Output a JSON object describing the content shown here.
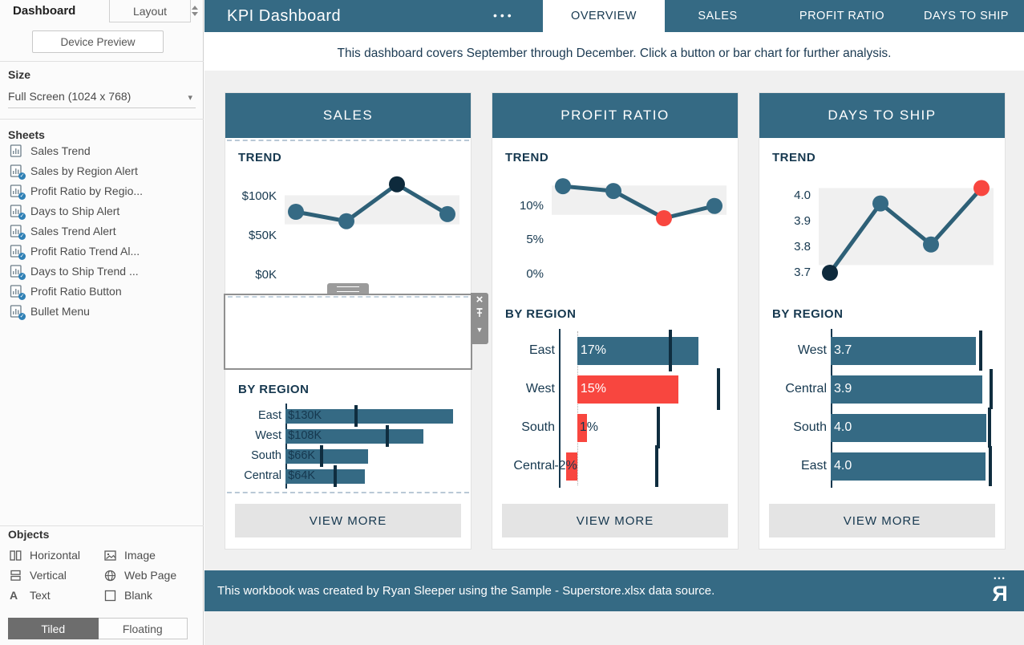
{
  "colors": {
    "teal": "#356a84",
    "navy": "#16384f",
    "dark_point": "#0e2a3c",
    "red": "#f8463f",
    "line": "#2e6077",
    "band": "#f0f0f0",
    "canvas": "#f0f0f0",
    "button_bg": "#e4e4e4",
    "tick_mark": "#0f2d3f"
  },
  "sidebar": {
    "tabs": {
      "dashboard": "Dashboard",
      "layout": "Layout"
    },
    "device_preview_label": "Device Preview",
    "size": {
      "label": "Size",
      "value": "Full Screen (1024 x 768)"
    },
    "sheets_label": "Sheets",
    "sheets": [
      {
        "name": "Sales Trend",
        "badge": false
      },
      {
        "name": "Sales by Region Alert",
        "badge": true
      },
      {
        "name": "Profit Ratio by Regio...",
        "badge": true
      },
      {
        "name": "Days to Ship Alert",
        "badge": true
      },
      {
        "name": "Sales Trend Alert",
        "badge": true
      },
      {
        "name": "Profit Ratio Trend Al...",
        "badge": true
      },
      {
        "name": "Days to Ship Trend ...",
        "badge": true
      },
      {
        "name": "Profit Ratio Button",
        "badge": true
      },
      {
        "name": "Bullet Menu",
        "badge": true
      }
    ],
    "objects_label": "Objects",
    "objects": [
      {
        "icon": "horizontal-container-icon",
        "label": "Horizontal"
      },
      {
        "icon": "image-icon",
        "label": "Image"
      },
      {
        "icon": "vertical-container-icon",
        "label": "Vertical"
      },
      {
        "icon": "web-page-icon",
        "label": "Web Page"
      },
      {
        "icon": "text-icon",
        "label": "Text"
      },
      {
        "icon": "blank-icon",
        "label": "Blank"
      }
    ],
    "tiled_label": "Tiled",
    "floating_label": "Floating"
  },
  "header": {
    "title": "KPI Dashboard",
    "menu_dots": "•••",
    "tabs": [
      {
        "label": "OVERVIEW",
        "active": true
      },
      {
        "label": "SALES",
        "active": false
      },
      {
        "label": "PROFIT RATIO",
        "active": false
      },
      {
        "label": "DAYS TO SHIP",
        "active": false
      }
    ]
  },
  "subtitle": "This dashboard covers September through December. Click a button or bar chart for further analysis.",
  "panels": [
    {
      "title": "SALES",
      "trend_label": "TREND",
      "by_region_label": "BY REGION",
      "view_more_label": "VIEW MORE"
    },
    {
      "title": "PROFIT RATIO",
      "trend_label": "TREND",
      "by_region_label": "BY REGION",
      "view_more_label": "VIEW MORE"
    },
    {
      "title": "DAYS TO SHIP",
      "trend_label": "TREND",
      "by_region_label": "BY REGION",
      "view_more_label": "VIEW MORE"
    }
  ],
  "chart_data": [
    {
      "panel": "SALES",
      "section": "TREND",
      "type": "line",
      "x_count": 4,
      "ylim": [
        -13,
        130
      ],
      "unit": "$K",
      "yticks": [
        {
          "label": "$100K",
          "value": 100
        },
        {
          "label": "$50K",
          "value": 50
        },
        {
          "label": "$0K",
          "value": 0
        }
      ],
      "values": [
        81,
        69,
        116,
        78
      ],
      "point_colors": [
        "teal",
        "teal",
        "navy",
        "teal"
      ],
      "band": [
        65,
        102
      ]
    },
    {
      "panel": "SALES",
      "section": "BY REGION",
      "type": "bullet-bar",
      "categories": [
        "East",
        "West",
        "South",
        "Central"
      ],
      "value_labels": [
        "$130K",
        "$108K",
        "$66K",
        "$64K"
      ],
      "values": [
        130,
        108,
        66,
        64
      ],
      "unit": "$K",
      "zero_line_pct": 0,
      "bar_left_pct": [
        0,
        0,
        0,
        0
      ],
      "bar_width_pct": [
        97,
        80,
        48,
        46
      ],
      "tick_pct": [
        41,
        59,
        21,
        29
      ],
      "bar_colors": [
        "teal",
        "teal",
        "teal",
        "teal"
      ],
      "value_x_pct": [
        1.5,
        1.5,
        1.5,
        1.5
      ],
      "value_colors": [
        "dark",
        "dark",
        "dark",
        "dark"
      ],
      "value_align": [
        "left",
        "left",
        "left",
        "left"
      ]
    },
    {
      "panel": "PROFIT RATIO",
      "section": "TREND",
      "type": "line",
      "x_count": 4,
      "ylim": [
        -1.7,
        14.8
      ],
      "unit": "%",
      "yticks": [
        {
          "label": "10%",
          "value": 10
        },
        {
          "label": "5%",
          "value": 5
        },
        {
          "label": "0%",
          "value": 0
        }
      ],
      "values": [
        12.9,
        12.2,
        8.2,
        10
      ],
      "point_colors": [
        "teal",
        "teal",
        "red",
        "teal"
      ],
      "band": [
        8.7,
        13
      ]
    },
    {
      "panel": "PROFIT RATIO",
      "section": "BY REGION",
      "type": "bullet-bar",
      "categories": [
        "East",
        "West",
        "South",
        "Central"
      ],
      "value_labels": [
        "17%",
        "15%",
        "1%",
        "-2%"
      ],
      "values": [
        17,
        15,
        1,
        -2
      ],
      "unit": "%",
      "zero_line_pct": 11,
      "bar_left_pct": [
        11,
        11,
        11,
        4.3
      ],
      "bar_width_pct": [
        73,
        61,
        6,
        6.7
      ],
      "tick_pct": [
        67,
        96,
        60,
        59
      ],
      "bar_colors": [
        "teal",
        "red",
        "red",
        "red"
      ],
      "value_x_pct": [
        13,
        13,
        12.5,
        0
      ],
      "value_colors": [
        "white",
        "white",
        "dark",
        "dark"
      ],
      "value_align": [
        "left",
        "left",
        "left",
        "right"
      ]
    },
    {
      "panel": "DAYS TO SHIP",
      "section": "TREND",
      "type": "line",
      "x_count": 4,
      "ylim": [
        3.65,
        4.0875
      ],
      "unit": "days",
      "yticks": [
        {
          "label": "4.0",
          "value": 4.0
        },
        {
          "label": "3.9",
          "value": 3.9
        },
        {
          "label": "3.8",
          "value": 3.8
        },
        {
          "label": "3.7",
          "value": 3.7
        }
      ],
      "values": [
        3.7,
        3.97,
        3.81,
        4.03
      ],
      "point_colors": [
        "navy",
        "teal",
        "teal",
        "red"
      ],
      "band": [
        3.73,
        4.03
      ]
    },
    {
      "panel": "DAYS TO SHIP",
      "section": "BY REGION",
      "type": "bullet-bar",
      "categories": [
        "West",
        "Central",
        "South",
        "East"
      ],
      "value_labels": [
        "3.7",
        "3.9",
        "4.0",
        "4.0"
      ],
      "values": [
        3.7,
        3.9,
        4.0,
        4.0
      ],
      "unit": "days",
      "zero_line_pct": 0,
      "bar_left_pct": [
        0,
        0,
        0,
        0
      ],
      "bar_width_pct": [
        90,
        94,
        96.5,
        96
      ],
      "tick_pct": [
        93,
        99.5,
        98.5,
        99
      ],
      "bar_colors": [
        "teal",
        "teal",
        "teal",
        "teal"
      ],
      "value_x_pct": [
        2,
        2,
        2,
        2
      ],
      "value_colors": [
        "white",
        "white",
        "white",
        "white"
      ],
      "value_align": [
        "left",
        "left",
        "left",
        "left"
      ]
    }
  ],
  "footer": {
    "text": "This workbook was created by Ryan Sleeper using the Sample - Superstore.xlsx data source.",
    "logo": "ryan-sleeper-logo"
  }
}
